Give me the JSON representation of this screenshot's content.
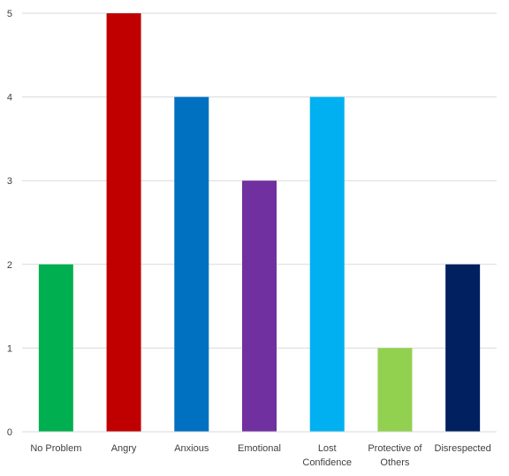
{
  "chart_data": {
    "type": "bar",
    "title": "",
    "xlabel": "",
    "ylabel": "",
    "ylim": [
      0,
      5
    ],
    "yticks": [
      0,
      1,
      2,
      3,
      4,
      5
    ],
    "grid": true,
    "legend": "none",
    "categories": [
      "No Problem",
      "Angry",
      "Anxious",
      "Emotional",
      "Lost Confidence",
      "Protective of Others",
      "Disrespected"
    ],
    "category_label_lines": [
      [
        "No Problem"
      ],
      [
        "Angry"
      ],
      [
        "Anxious"
      ],
      [
        "Emotional"
      ],
      [
        "Lost",
        "Confidence"
      ],
      [
        "Protective of",
        "Others"
      ],
      [
        "Disrespected"
      ]
    ],
    "values": [
      2,
      5,
      4,
      3,
      4,
      1,
      2
    ],
    "colors": [
      "#00b050",
      "#c00000",
      "#0070c0",
      "#7030a0",
      "#00b0f0",
      "#92d050",
      "#002060"
    ]
  }
}
